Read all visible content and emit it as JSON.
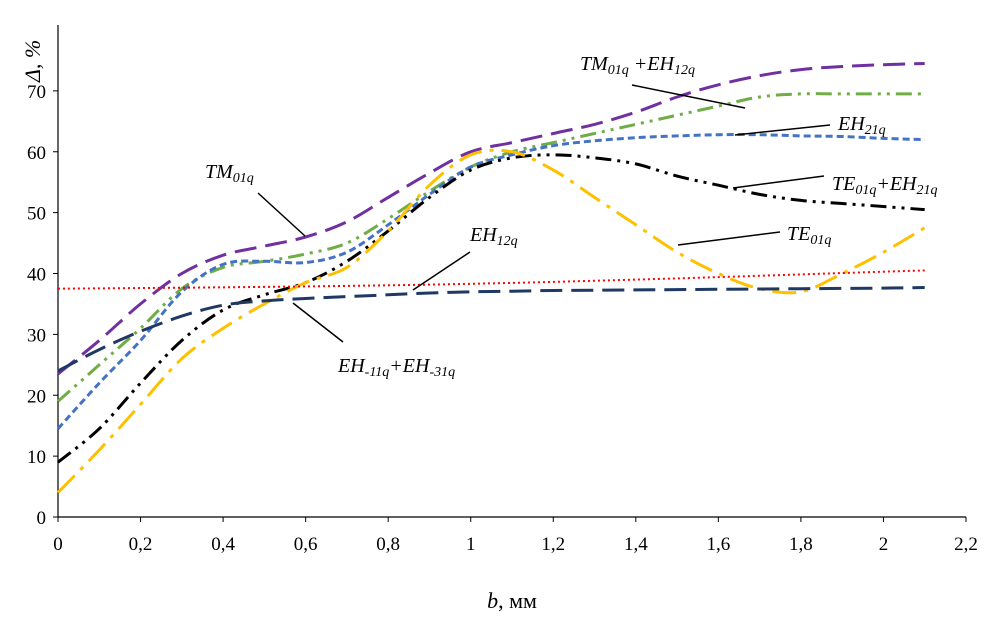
{
  "chart_data": {
    "type": "line",
    "xlabel": "b, мм",
    "ylabel": "Δ, %",
    "xlim": [
      0,
      2.2
    ],
    "ylim": [
      0,
      80
    ],
    "x_ticks": [
      "0",
      "0,2",
      "0,4",
      "0,6",
      "0,8",
      "1",
      "1,2",
      "1,4",
      "1,6",
      "1,8",
      "2",
      "2,2"
    ],
    "y_ticks": [
      "0",
      "10",
      "20",
      "30",
      "40",
      "50",
      "60",
      "70"
    ],
    "grid": false,
    "legend": "none",
    "series": [
      {
        "name": "TM01q",
        "color": "#7030a0",
        "dash": "long-dash",
        "points": [
          [
            0,
            23.5
          ],
          [
            0.1,
            29
          ],
          [
            0.2,
            35
          ],
          [
            0.3,
            40
          ],
          [
            0.4,
            43
          ],
          [
            0.5,
            44.5
          ],
          [
            0.6,
            46
          ],
          [
            0.7,
            48.5
          ],
          [
            0.8,
            52.5
          ],
          [
            0.9,
            56.5
          ],
          [
            1.0,
            60
          ],
          [
            1.1,
            61.5
          ],
          [
            1.2,
            63
          ],
          [
            1.3,
            64.5
          ],
          [
            1.4,
            66.5
          ],
          [
            1.5,
            69
          ],
          [
            1.6,
            71
          ],
          [
            1.7,
            72.5
          ],
          [
            1.8,
            73.5
          ],
          [
            1.9,
            74
          ],
          [
            2.0,
            74.3
          ],
          [
            2.1,
            74.5
          ]
        ]
      },
      {
        "name": "TM01q +EH12q",
        "color": "#70ad47",
        "dash": "dash-dot-dot",
        "points": [
          [
            0,
            19
          ],
          [
            0.1,
            25
          ],
          [
            0.2,
            31
          ],
          [
            0.3,
            37.5
          ],
          [
            0.4,
            41
          ],
          [
            0.5,
            42
          ],
          [
            0.6,
            43.2
          ],
          [
            0.7,
            45
          ],
          [
            0.8,
            49
          ],
          [
            0.9,
            53.5
          ],
          [
            1.0,
            57.5
          ],
          [
            1.1,
            60
          ],
          [
            1.2,
            61.5
          ],
          [
            1.3,
            63
          ],
          [
            1.4,
            64.5
          ],
          [
            1.5,
            66
          ],
          [
            1.6,
            67.5
          ],
          [
            1.7,
            69
          ],
          [
            1.8,
            69.5
          ],
          [
            1.9,
            69.5
          ],
          [
            2.0,
            69.5
          ],
          [
            2.1,
            69.5
          ]
        ]
      },
      {
        "name": "EH21q",
        "color": "#4472c4",
        "dash": "short-dash",
        "points": [
          [
            0,
            14.5
          ],
          [
            0.1,
            22
          ],
          [
            0.2,
            29
          ],
          [
            0.3,
            37
          ],
          [
            0.4,
            41.5
          ],
          [
            0.5,
            42
          ],
          [
            0.6,
            41.8
          ],
          [
            0.7,
            43.5
          ],
          [
            0.8,
            48
          ],
          [
            0.9,
            53
          ],
          [
            1.0,
            57.5
          ],
          [
            1.1,
            59.5
          ],
          [
            1.2,
            61
          ],
          [
            1.3,
            61.8
          ],
          [
            1.4,
            62.3
          ],
          [
            1.5,
            62.6
          ],
          [
            1.6,
            62.8
          ],
          [
            1.7,
            62.8
          ],
          [
            1.8,
            62.6
          ],
          [
            1.9,
            62.5
          ],
          [
            2.0,
            62.2
          ],
          [
            2.1,
            62
          ]
        ]
      },
      {
        "name": "TE01q+EH21q",
        "color": "#000000",
        "dash": "dash-dot-dot",
        "points": [
          [
            0,
            9
          ],
          [
            0.1,
            14.5
          ],
          [
            0.2,
            22
          ],
          [
            0.3,
            29
          ],
          [
            0.4,
            34
          ],
          [
            0.5,
            36.5
          ],
          [
            0.6,
            38.5
          ],
          [
            0.7,
            42
          ],
          [
            0.8,
            47
          ],
          [
            0.9,
            52.5
          ],
          [
            1.0,
            57
          ],
          [
            1.1,
            59
          ],
          [
            1.2,
            59.5
          ],
          [
            1.3,
            59
          ],
          [
            1.4,
            58
          ],
          [
            1.5,
            56
          ],
          [
            1.6,
            54.5
          ],
          [
            1.7,
            53
          ],
          [
            1.8,
            52
          ],
          [
            1.9,
            51.5
          ],
          [
            2.0,
            51
          ],
          [
            2.1,
            50.5
          ]
        ]
      },
      {
        "name": "TE01q",
        "color": "#ffc000",
        "dash": "long-dash-dot",
        "points": [
          [
            0,
            4
          ],
          [
            0.1,
            11
          ],
          [
            0.2,
            18.5
          ],
          [
            0.3,
            26
          ],
          [
            0.4,
            31
          ],
          [
            0.5,
            35
          ],
          [
            0.6,
            38.5
          ],
          [
            0.7,
            41
          ],
          [
            0.8,
            47
          ],
          [
            0.9,
            54.5
          ],
          [
            1.0,
            59.5
          ],
          [
            1.1,
            60
          ],
          [
            1.2,
            57
          ],
          [
            1.3,
            52.5
          ],
          [
            1.4,
            48
          ],
          [
            1.5,
            43.5
          ],
          [
            1.6,
            40
          ],
          [
            1.7,
            37.5
          ],
          [
            1.8,
            37
          ],
          [
            1.9,
            40
          ],
          [
            2.0,
            43.5
          ],
          [
            2.1,
            47.5
          ]
        ]
      },
      {
        "name": "EH12q",
        "color": "#ff0000",
        "dash": "dotted",
        "points": [
          [
            0,
            37.5
          ],
          [
            0.5,
            37.8
          ],
          [
            1.0,
            38.3
          ],
          [
            1.5,
            39.2
          ],
          [
            2.0,
            40.3
          ],
          [
            2.1,
            40.5
          ]
        ]
      },
      {
        "name": "EH-11q+EH-31q",
        "color": "#1f3864",
        "dash": "long-dash",
        "points": [
          [
            0,
            24
          ],
          [
            0.1,
            27.5
          ],
          [
            0.2,
            30.5
          ],
          [
            0.3,
            33
          ],
          [
            0.4,
            34.8
          ],
          [
            0.5,
            35.5
          ],
          [
            0.6,
            35.9
          ],
          [
            0.7,
            36.2
          ],
          [
            0.8,
            36.5
          ],
          [
            0.9,
            36.8
          ],
          [
            1.0,
            37
          ],
          [
            1.1,
            37.1
          ],
          [
            1.2,
            37.2
          ],
          [
            1.4,
            37.3
          ],
          [
            1.6,
            37.4
          ],
          [
            1.8,
            37.5
          ],
          [
            2.0,
            37.6
          ],
          [
            2.1,
            37.7
          ]
        ]
      }
    ],
    "annotations": [
      {
        "id": "tm01",
        "parts": [
          [
            "TM",
            ""
          ],
          [
            "01q",
            "sub"
          ]
        ]
      },
      {
        "id": "tm01eh12",
        "parts": [
          [
            "TM",
            ""
          ],
          [
            "01q",
            "sub"
          ],
          [
            " +EH",
            ""
          ],
          [
            "12q",
            "sub"
          ]
        ]
      },
      {
        "id": "eh21",
        "parts": [
          [
            "EH",
            ""
          ],
          [
            "21q",
            "sub"
          ]
        ]
      },
      {
        "id": "te01eh21",
        "parts": [
          [
            "TE",
            ""
          ],
          [
            "01q",
            "sub"
          ],
          [
            "+EH",
            ""
          ],
          [
            "21q",
            "sub"
          ]
        ]
      },
      {
        "id": "te01",
        "parts": [
          [
            "TE",
            ""
          ],
          [
            "01q",
            "sub"
          ]
        ]
      },
      {
        "id": "eh12",
        "parts": [
          [
            "EH",
            ""
          ],
          [
            "12q",
            "sub"
          ]
        ]
      },
      {
        "id": "ehm11",
        "parts": [
          [
            "EH",
            ""
          ],
          [
            "-11q",
            "sub"
          ],
          [
            "+EH",
            ""
          ],
          [
            "-31q",
            "sub"
          ]
        ]
      }
    ]
  }
}
